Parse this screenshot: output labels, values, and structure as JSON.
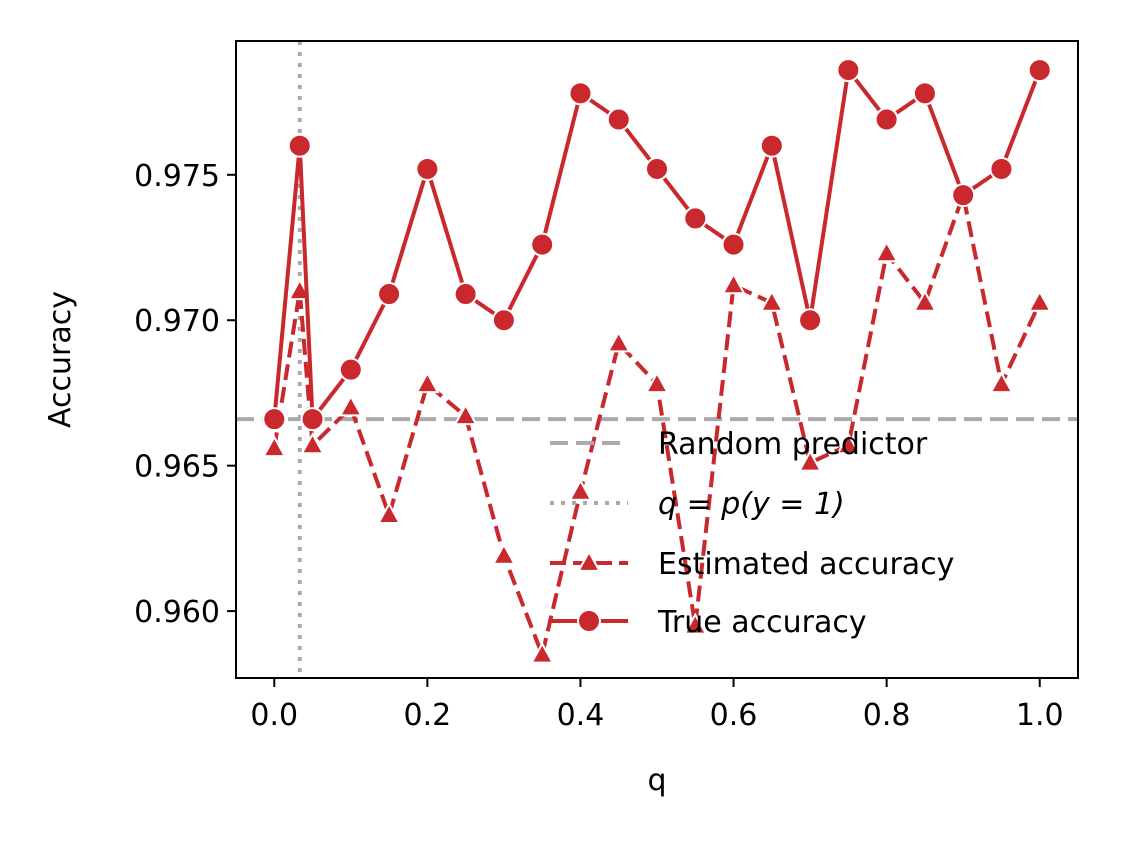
{
  "chart_data": {
    "type": "line",
    "xlabel": "q",
    "ylabel": "Accuracy",
    "xlim": [
      -0.05,
      1.05
    ],
    "ylim": [
      0.9577,
      0.9796
    ],
    "xticks": [
      0.0,
      0.2,
      0.4,
      0.6,
      0.8,
      1.0
    ],
    "xtick_labels": [
      "0.0",
      "0.2",
      "0.4",
      "0.6",
      "0.8",
      "1.0"
    ],
    "yticks": [
      0.96,
      0.965,
      0.97,
      0.975
    ],
    "ytick_labels": [
      "0.960",
      "0.965",
      "0.970",
      "0.975"
    ],
    "grid": false,
    "legend_position": "lower-right",
    "x": [
      0.0,
      0.0333,
      0.05,
      0.1,
      0.15,
      0.2,
      0.25,
      0.3,
      0.35,
      0.4,
      0.45,
      0.5,
      0.55,
      0.6,
      0.65,
      0.7,
      0.75,
      0.8,
      0.85,
      0.9,
      0.95,
      1.0
    ],
    "series": [
      {
        "name": "Estimated accuracy",
        "marker": "triangle",
        "linestyle": "dashed",
        "color": "#c9282d",
        "values": [
          0.9656,
          0.971,
          0.9657,
          0.967,
          0.9633,
          0.9678,
          0.9667,
          0.9619,
          0.9585,
          0.9641,
          0.9692,
          0.9678,
          0.9595,
          0.9712,
          0.9706,
          0.9651,
          0.9657,
          0.9723,
          0.9706,
          0.9743,
          0.9678,
          0.9706
        ]
      },
      {
        "name": "True accuracy",
        "marker": "circle",
        "linestyle": "solid",
        "color": "#c9282d",
        "values": [
          0.9666,
          0.976,
          0.9666,
          0.9683,
          0.9709,
          0.9752,
          0.9709,
          0.97,
          0.9726,
          0.9778,
          0.9769,
          0.9752,
          0.9735,
          0.9726,
          0.976,
          0.97,
          0.9786,
          0.9769,
          0.9778,
          0.9743,
          0.9752,
          0.9786
        ]
      }
    ],
    "reference_lines": [
      {
        "name": "Random predictor",
        "orientation": "horizontal",
        "value": 0.9666,
        "linestyle": "dashed",
        "color": "#aaaaaa"
      },
      {
        "name": "q = p(y = 1)",
        "orientation": "vertical",
        "value": 0.0333,
        "linestyle": "dotted",
        "color": "#aaaaaa"
      }
    ],
    "legend": [
      {
        "label": "Random predictor",
        "kind": "hline"
      },
      {
        "label": "q = p(y = 1)",
        "kind": "vline"
      },
      {
        "label": "Estimated accuracy",
        "kind": "est"
      },
      {
        "label": "True accuracy",
        "kind": "true"
      }
    ]
  }
}
